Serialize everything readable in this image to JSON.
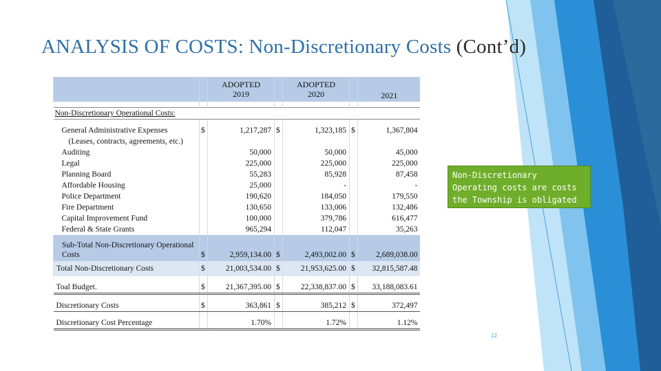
{
  "slide": {
    "title_main": "ANALYSIS OF COSTS: Non-Discretionary Costs ",
    "title_cont": "(Cont’d)",
    "callout": "Non-Discretionary Operating costs are costs the Township is obligated to pay",
    "page_number": "12",
    "accent_colors": [
      "#1f5e99",
      "#2a8fd6",
      "#7fc3ee",
      "#6fae2a"
    ]
  },
  "table": {
    "headers": {
      "col1_top": "ADOPTED",
      "col1_year": "2019",
      "col2_top": "ADOPTED",
      "col2_year": "2020",
      "col3_year": "2021"
    },
    "section_label": "Non-Discretionary Operational Costs:",
    "items": [
      {
        "label": "General Administrative Expenses",
        "c1": "$",
        "v1": "1,217,287",
        "c2": "$",
        "v2": "1,323,185",
        "c3": "$",
        "v3": "1,367,804"
      },
      {
        "label": "(Leases, contracts, agreements, etc.)",
        "c1": "",
        "v1": "",
        "c2": "",
        "v2": "",
        "c3": "",
        "v3": ""
      },
      {
        "label": "Auditing",
        "c1": "",
        "v1": "50,000",
        "c2": "",
        "v2": "50,000",
        "c3": "",
        "v3": "45,000"
      },
      {
        "label": "Legal",
        "c1": "",
        "v1": "225,000",
        "c2": "",
        "v2": "225,000",
        "c3": "",
        "v3": "225,000"
      },
      {
        "label": "Planning Board",
        "c1": "",
        "v1": "55,283",
        "c2": "",
        "v2": "85,928",
        "c3": "",
        "v3": "87,458"
      },
      {
        "label": "Affordable Housing",
        "c1": "",
        "v1": "25,000",
        "c2": "",
        "v2": "-",
        "c3": "",
        "v3": "-"
      },
      {
        "label": "Police Department",
        "c1": "",
        "v1": "190,620",
        "c2": "",
        "v2": "184,050",
        "c3": "",
        "v3": "179,550"
      },
      {
        "label": "Fire Department",
        "c1": "",
        "v1": "130,650",
        "c2": "",
        "v2": "133,006",
        "c3": "",
        "v3": "132,486"
      },
      {
        "label": "Capital Improvement Fund",
        "c1": "",
        "v1": "100,000",
        "c2": "",
        "v2": "379,786",
        "c3": "",
        "v3": "616,477"
      },
      {
        "label": "Federal & State Grants",
        "c1": "",
        "v1": "965,294",
        "c2": "",
        "v2": "112,047",
        "c3": "",
        "v3": "35,263"
      }
    ],
    "subtotal": {
      "label": "Sub-Total Non-Discretionary Operational Costs",
      "c1": "$",
      "v1": "2,959,134.00",
      "c2": "$",
      "v2": "2,493,002.00",
      "c3": "$",
      "v3": "2,689,038.00"
    },
    "total_nd": {
      "label": "Total Non-Discretionary Costs",
      "c1": "$",
      "v1": "21,003,534.00",
      "c2": "$",
      "v2": "21,953,625.00",
      "c3": "$",
      "v3": "32,815,587.48"
    },
    "total_budget": {
      "label": "Toal Budget.",
      "c1": "$",
      "v1": "21,367,395.00",
      "c2": "$",
      "v2": "22,338,837.00",
      "c3": "$",
      "v3": "33,188,083.61"
    },
    "discretionary": {
      "label": "Discretionary Costs",
      "c1": "$",
      "v1": "363,861",
      "c2": "$",
      "v2": "385,212",
      "c3": "$",
      "v3": "372,497"
    },
    "percentage": {
      "label": "Discretionary Cost Percentage",
      "c1": "",
      "v1": "1.70%",
      "c2": "",
      "v2": "1.72%",
      "c3": "",
      "v3": "1.12%"
    }
  }
}
